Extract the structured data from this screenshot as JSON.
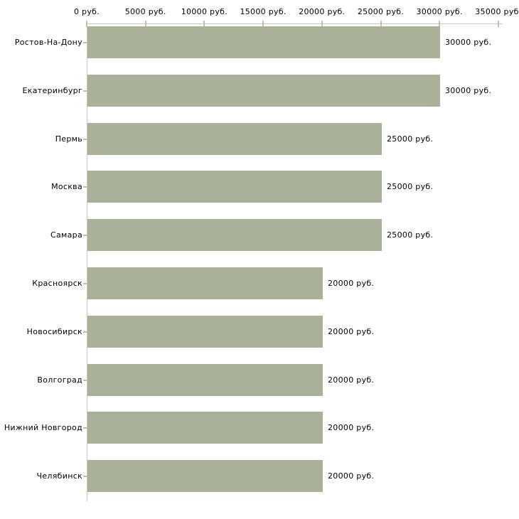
{
  "chart_data": {
    "type": "bar",
    "orientation": "horizontal",
    "title": "",
    "categories": [
      "Ростов-На-Дону",
      "Екатеринбург",
      "Пермь",
      "Москва",
      "Самара",
      "Красноярск",
      "Новосибирск",
      "Волгоград",
      "Нижний Новгород",
      "Челябинск"
    ],
    "values": [
      30000,
      30000,
      25000,
      25000,
      25000,
      20000,
      20000,
      20000,
      20000,
      20000
    ],
    "value_labels": [
      "30000 руб.",
      "30000 руб.",
      "25000 руб.",
      "25000 руб.",
      "25000 руб.",
      "20000 руб.",
      "20000 руб.",
      "20000 руб.",
      "20000 руб.",
      "20000 руб."
    ],
    "x_ticks": [
      0,
      5000,
      10000,
      15000,
      20000,
      25000,
      30000,
      35000
    ],
    "x_tick_labels": [
      "0 руб.",
      "5000 руб.",
      "10000 руб.",
      "15000 руб.",
      "20000 руб.",
      "25000 руб.",
      "30000 руб.",
      "35000 руб."
    ],
    "xlim": [
      0,
      35000
    ],
    "axis_position": "top",
    "grid": false,
    "legend": "none",
    "colors": {
      "bar": "#a9b199",
      "tick": "#c2c2a0",
      "axis_line": "#c6c6c6",
      "text": "#000000",
      "background": "#ffffff"
    }
  }
}
